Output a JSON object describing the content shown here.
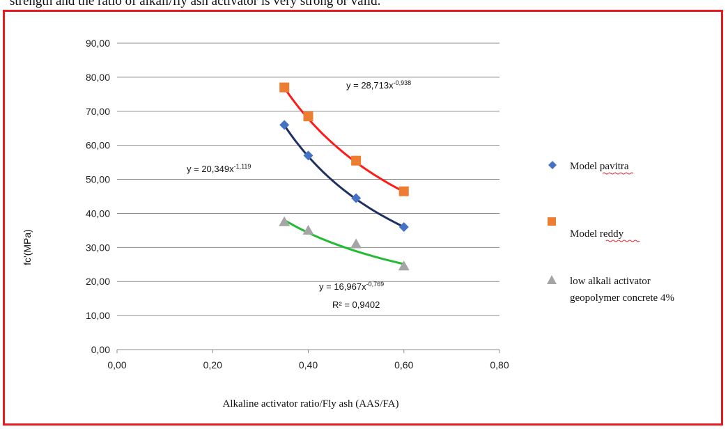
{
  "caption_fragment": "strength and the ratio of alkali/fly ash activator is very strong or valid.",
  "chart_data": {
    "type": "scatter",
    "xlabel": "Alkaline activator ratio/Fly ash (AAS/FA)",
    "ylabel": "fc'(MPa)",
    "xlim": [
      0,
      0.8
    ],
    "ylim": [
      0,
      90
    ],
    "x_ticks": [
      "0,00",
      "0,20",
      "0,40",
      "0,60",
      "0,80"
    ],
    "y_ticks": [
      "0,00",
      "10,00",
      "20,00",
      "30,00",
      "40,00",
      "50,00",
      "60,00",
      "70,00",
      "80,00",
      "90,00"
    ],
    "grid": "horizontal",
    "legend_position": "right",
    "series": [
      {
        "name": "Model pavitra",
        "color": "#4472c4",
        "trend_color": "#1f3164",
        "marker": "diamond",
        "x": [
          0.35,
          0.4,
          0.5,
          0.6
        ],
        "y": [
          66,
          57,
          44.5,
          36
        ],
        "trend": {
          "a": 20.349,
          "b": -1.119
        },
        "equation_base": "y = 20,349x",
        "equation_exp": "-1,119"
      },
      {
        "name": "Model reddy",
        "color": "#ed7d31",
        "trend_color": "#ff1a1a",
        "marker": "square",
        "x": [
          0.35,
          0.4,
          0.5,
          0.6
        ],
        "y": [
          77,
          68.5,
          55.5,
          46.5
        ],
        "trend": {
          "a": 28.713,
          "b": -0.938
        },
        "equation_base": "y = 28,713x",
        "equation_exp": "-0,938"
      },
      {
        "name_line1": "low alkali activator",
        "name_line2": "geopolymer concrete 4%",
        "color": "#a5a5a5",
        "trend_color": "#22bb33",
        "marker": "triangle",
        "x": [
          0.35,
          0.4,
          0.5,
          0.6
        ],
        "y": [
          37.5,
          35,
          31,
          24.5
        ],
        "trend": {
          "a": 16.967,
          "b": -0.769
        },
        "equation_base": "y = 16,967x",
        "equation_exp": "-0,769",
        "r_squared": "R² = 0,9402"
      }
    ]
  }
}
